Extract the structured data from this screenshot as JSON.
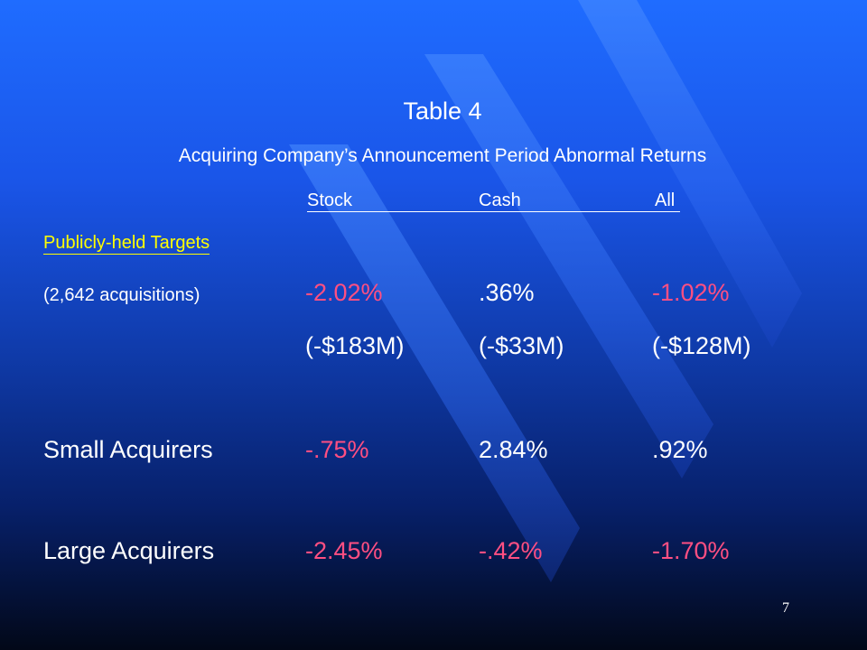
{
  "slide": {
    "title": "Table 4",
    "subtitle": "Acquiring Company’s Announcement Period Abnormal Returns",
    "columns": [
      "Stock",
      "Cash",
      "All"
    ],
    "section_label": "Publicly-held Targets",
    "rows": [
      {
        "label": "(2,642 acquisitions)",
        "values": [
          "-2.02%",
          ".36%",
          "-1.02%"
        ],
        "dollar_values": [
          "(-$183M)",
          "(-$33M)",
          "(-$128M)"
        ]
      },
      {
        "label": "Small Acquirers",
        "values": [
          "-.75%",
          "2.84%",
          ".92%"
        ]
      },
      {
        "label": "Large Acquirers",
        "values": [
          "-2.45%",
          "-.42%",
          "-1.70%"
        ]
      }
    ],
    "page_number": "7",
    "colors": {
      "background_top": "#1f6cff",
      "background_bottom": "#020818",
      "value_text": "#ff4f82",
      "section_label": "#ffff00",
      "text": "#ffffff"
    }
  }
}
